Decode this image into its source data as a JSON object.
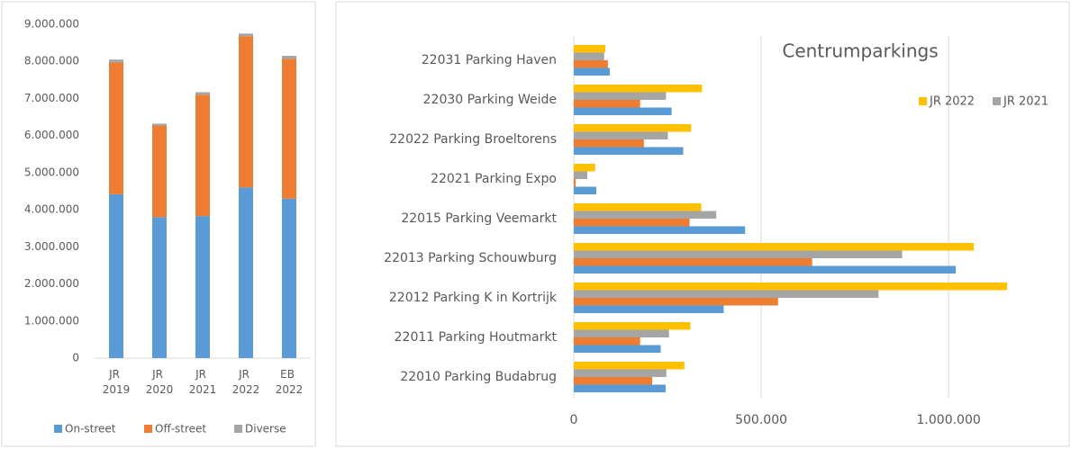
{
  "chart_data": [
    {
      "type": "stacked_bar",
      "categories": [
        "JR 2019",
        "JR 2020",
        "JR 2021",
        "JR 2022",
        "EB 2022"
      ],
      "series": [
        {
          "name": "On-street",
          "color": "#5b9bd5",
          "values": [
            4420000,
            3800000,
            3830000,
            4600000,
            4300000
          ]
        },
        {
          "name": "Off-street",
          "color": "#ed7d31",
          "values": [
            3550000,
            2470000,
            3270000,
            4080000,
            3770000
          ]
        },
        {
          "name": "Diverse",
          "color": "#a5a5a5",
          "values": [
            80000,
            50000,
            70000,
            70000,
            80000
          ]
        }
      ],
      "ylim": [
        0,
        9000000
      ],
      "yticks": [
        0,
        {
          "value": 1000000,
          "label": "1.000.000"
        },
        {
          "value": 2000000,
          "label": "2.000.000"
        },
        {
          "value": 3000000,
          "label": "3.000.000"
        },
        {
          "value": 4000000,
          "label": "4.000.000"
        },
        {
          "value": 5000000,
          "label": "5.000.000"
        },
        {
          "value": 6000000,
          "label": "6.000.000"
        },
        {
          "value": 7000000,
          "label": "7.000.000"
        },
        {
          "value": 8000000,
          "label": "8.000.000"
        },
        {
          "value": 9000000,
          "label": "9.000.000"
        }
      ],
      "legend": "bottom"
    },
    {
      "type": "hbar",
      "title": "Centrumparkings",
      "categories": [
        "22031 Parking Haven",
        "22030 Parking Weide",
        "22022 Parking Broeltorens",
        "22021 Parking Expo",
        "22015 Parking Veemarkt",
        "22013 Parking Schouwburg",
        "22012 Parking K in Kortrijk",
        "22011 Parking Houtmarkt",
        "22010 Parking Budabrug"
      ],
      "series": [
        {
          "name": "JR 2022",
          "color": "#ffc000",
          "values": [
            84000,
            342000,
            313000,
            57000,
            340000,
            1067000,
            1156000,
            311000,
            295000
          ]
        },
        {
          "name": "JR 2021",
          "color": "#a5a5a5",
          "values": [
            81000,
            246000,
            251000,
            36000,
            380000,
            876000,
            813000,
            254000,
            247000
          ]
        },
        {
          "color": "#ed7d31",
          "values": [
            91000,
            177000,
            187000,
            5000,
            309000,
            636000,
            545000,
            177000,
            209000
          ]
        },
        {
          "color": "#5b9bd5",
          "values": [
            96000,
            261000,
            292000,
            60000,
            457000,
            1019000,
            400000,
            232000,
            245000
          ]
        }
      ],
      "xlim": [
        0,
        1300000
      ],
      "xticks": [
        0,
        {
          "value": 500000,
          "label": "500.000"
        },
        {
          "value": 1000000,
          "label": "1.000.000"
        }
      ],
      "grid": true,
      "legend": "top-right"
    }
  ]
}
